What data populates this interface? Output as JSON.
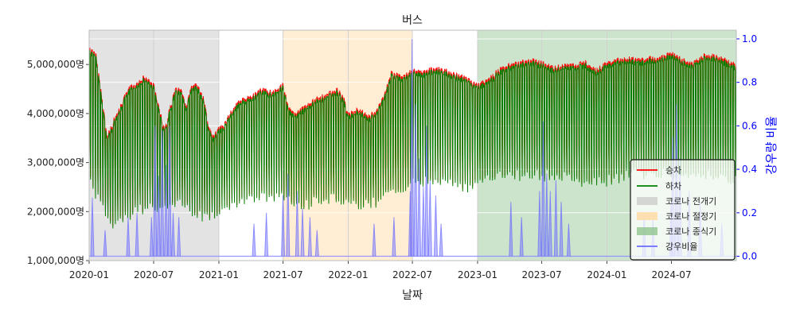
{
  "chart_data": {
    "type": "line",
    "title": "버스",
    "xlabel": "날짜",
    "ylabel": "",
    "y2label": "강우량 비율",
    "xlim": [
      "2020-01-01",
      "2024-12-31"
    ],
    "ylim": [
      1000000,
      5700000
    ],
    "y2lim": [
      -0.02,
      1.04
    ],
    "x_ticks": [
      "2020-01-01",
      "2020-07-01",
      "2021-01-01",
      "2021-07-01",
      "2022-01-01",
      "2022-07-01",
      "2023-01-01",
      "2023-07-01",
      "2024-01-01",
      "2024-07-01"
    ],
    "x_tick_labels": [
      "2020-01",
      "2020-07",
      "2021-01",
      "2021-07",
      "2022-01",
      "2022-07",
      "2023-01",
      "2023-07",
      "2024-01",
      "2024-07"
    ],
    "y_ticks": [
      1000000,
      2000000,
      3000000,
      4000000,
      5000000
    ],
    "y_tick_labels": [
      "1,000,000명",
      "2,000,000명",
      "3,000,000명",
      "4,000,000명",
      "5,000,000명"
    ],
    "y2_ticks": [
      0.0,
      0.2,
      0.4,
      0.6,
      0.8,
      1.0
    ],
    "y2_tick_labels": [
      "0.0",
      "0.2",
      "0.4",
      "0.6",
      "0.8",
      "1.0"
    ],
    "grid": true,
    "legend_position": "lower-right",
    "colors": {
      "boarding": "#ff0000",
      "alighting": "#008000",
      "rain": "#0000ff",
      "period1": "#c8c8c8",
      "period2": "#ffd9a0",
      "period3": "#8fc48f",
      "right_axis": "#0000ff"
    },
    "periods": [
      {
        "name": "코로나 전개기",
        "start": "2020-01-01",
        "end": "2020-12-31",
        "color": "#c8c8c8"
      },
      {
        "name": "코로나 절정기",
        "start": "2021-07-01",
        "end": "2022-06-30",
        "color": "#ffd9a0"
      },
      {
        "name": "코로나 종식기",
        "start": "2022-12-31",
        "end": "2024-12-31",
        "color": "#8fc48f"
      }
    ],
    "series_names": {
      "boarding": "승차",
      "alighting": "하차",
      "rain": "강우비율"
    },
    "weekday_envelope": {
      "dates": [
        "2020-01-01",
        "2020-01-20",
        "2020-02-01",
        "2020-02-20",
        "2020-03-01",
        "2020-03-15",
        "2020-04-01",
        "2020-04-15",
        "2020-05-01",
        "2020-05-15",
        "2020-06-01",
        "2020-06-15",
        "2020-07-01",
        "2020-08-01",
        "2020-08-15",
        "2020-08-31",
        "2020-09-15",
        "2020-10-01",
        "2020-10-15",
        "2020-11-01",
        "2020-11-20",
        "2020-12-01",
        "2020-12-15",
        "2020-12-31",
        "2021-01-15",
        "2021-02-01",
        "2021-03-01",
        "2021-04-01",
        "2021-05-01",
        "2021-06-01",
        "2021-07-01",
        "2021-07-15",
        "2021-08-01",
        "2021-09-01",
        "2021-10-01",
        "2021-11-01",
        "2021-12-01",
        "2021-12-20",
        "2022-01-01",
        "2022-02-01",
        "2022-03-01",
        "2022-04-01",
        "2022-04-20",
        "2022-05-01",
        "2022-06-01",
        "2022-07-01",
        "2022-08-01",
        "2022-09-01",
        "2022-10-01",
        "2022-11-01",
        "2022-12-01",
        "2023-01-01",
        "2023-02-01",
        "2023-03-01",
        "2023-04-01",
        "2023-05-01",
        "2023-06-01",
        "2023-07-01",
        "2023-08-01",
        "2023-09-01",
        "2023-10-01",
        "2023-11-01",
        "2023-12-01",
        "2024-01-01",
        "2024-02-01",
        "2024-03-01",
        "2024-04-01",
        "2024-05-01",
        "2024-06-01",
        "2024-07-01",
        "2024-08-01",
        "2024-09-01",
        "2024-10-01",
        "2024-11-01",
        "2024-12-01",
        "2024-12-31"
      ],
      "values": [
        5350000,
        5200000,
        4600000,
        3550000,
        3700000,
        3950000,
        4200000,
        4450000,
        4600000,
        4650000,
        4750000,
        4700000,
        4600000,
        3650000,
        4100000,
        4500000,
        4500000,
        4150000,
        4550000,
        4600000,
        4300000,
        3800000,
        3550000,
        3700000,
        3800000,
        4000000,
        4300000,
        4350000,
        4500000,
        4450000,
        4600000,
        4150000,
        4000000,
        4150000,
        4300000,
        4400000,
        4500000,
        4300000,
        4000000,
        4100000,
        3950000,
        4200000,
        4550000,
        4850000,
        4750000,
        4900000,
        4850000,
        4950000,
        4900000,
        4800000,
        4750000,
        4600000,
        4700000,
        4900000,
        5000000,
        5050000,
        5100000,
        5050000,
        4950000,
        5000000,
        5000000,
        5050000,
        4900000,
        5050000,
        5100000,
        5150000,
        5100000,
        5150000,
        5150000,
        5250000,
        5100000,
        5050000,
        5200000,
        5200000,
        5100000,
        5000000
      ]
    },
    "weekend_envelope": {
      "dates": [
        "2020-01-01",
        "2020-03-01",
        "2020-06-01",
        "2020-09-01",
        "2020-12-01",
        "2021-03-01",
        "2021-06-01",
        "2021-09-01",
        "2021-12-01",
        "2022-03-01",
        "2022-06-01",
        "2022-09-01",
        "2022-12-01",
        "2023-03-01",
        "2023-06-01",
        "2023-09-01",
        "2023-12-01",
        "2024-03-01",
        "2024-06-01",
        "2024-09-01",
        "2024-12-31"
      ],
      "values": [
        2800000,
        1900000,
        2200000,
        2300000,
        2000000,
        2350000,
        2450000,
        2300000,
        2400000,
        2250000,
        2650000,
        2800000,
        2650000,
        2850000,
        2900000,
        2850000,
        2700000,
        2900000,
        2950000,
        2900000,
        2800000
      ]
    },
    "rain_ratio": {
      "dates": [
        "2020-01-10",
        "2020-02-15",
        "2020-04-20",
        "2020-05-15",
        "2020-06-25",
        "2020-07-05",
        "2020-07-15",
        "2020-07-25",
        "2020-08-05",
        "2020-08-15",
        "2020-08-25",
        "2020-09-10",
        "2021-04-10",
        "2021-05-15",
        "2021-07-01",
        "2021-07-15",
        "2021-08-10",
        "2021-08-25",
        "2021-09-15",
        "2021-10-05",
        "2022-03-15",
        "2022-05-10",
        "2022-06-25",
        "2022-06-30",
        "2022-07-10",
        "2022-07-20",
        "2022-08-01",
        "2022-08-10",
        "2022-08-20",
        "2022-09-05",
        "2022-09-20",
        "2023-04-05",
        "2023-05-05",
        "2023-06-25",
        "2023-07-05",
        "2023-07-15",
        "2023-07-25",
        "2023-08-10",
        "2023-08-25",
        "2023-09-15",
        "2024-04-15",
        "2024-05-10",
        "2024-06-30",
        "2024-07-05",
        "2024-07-15",
        "2024-07-25",
        "2024-08-20",
        "2024-09-20",
        "2024-11-20"
      ],
      "values": [
        0.27,
        0.12,
        0.18,
        0.2,
        0.18,
        0.6,
        0.37,
        0.58,
        0.42,
        0.6,
        0.2,
        0.18,
        0.15,
        0.2,
        0.28,
        0.38,
        0.3,
        0.22,
        0.18,
        0.12,
        0.15,
        0.18,
        0.3,
        1.0,
        0.7,
        0.45,
        0.32,
        0.6,
        0.35,
        0.28,
        0.15,
        0.25,
        0.18,
        0.3,
        0.62,
        0.38,
        0.3,
        0.35,
        0.25,
        0.15,
        0.2,
        0.18,
        0.25,
        0.55,
        0.7,
        0.45,
        0.3,
        0.25,
        0.15
      ]
    }
  }
}
